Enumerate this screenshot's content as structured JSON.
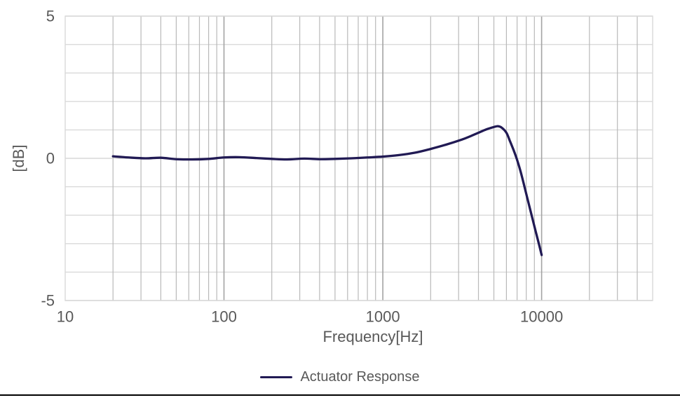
{
  "figure": {
    "background": "#ffffff",
    "bottom_rule_color": "#000000"
  },
  "chart_data": {
    "type": "line",
    "title": "",
    "xlabel": "Frequency[Hz]",
    "ylabel": "[dB]",
    "x_scale": "log",
    "xlim": [
      10,
      50000
    ],
    "ylim": [
      -5,
      5
    ],
    "x_tick_values": [
      10,
      100,
      1000,
      10000
    ],
    "x_tick_labels": [
      "10",
      "100",
      "1000",
      "10000"
    ],
    "y_tick_values": [
      5,
      0,
      -5
    ],
    "y_tick_labels": [
      "5",
      "0",
      "-5"
    ],
    "y_grid_step": 1,
    "grid": true,
    "legend_position": "bottom",
    "series": [
      {
        "name": "Actuator Response",
        "color": "#211a54",
        "points": [
          [
            20,
            0.07
          ],
          [
            25,
            0.03
          ],
          [
            32,
            0.0
          ],
          [
            40,
            0.02
          ],
          [
            50,
            -0.03
          ],
          [
            63,
            -0.04
          ],
          [
            80,
            -0.02
          ],
          [
            100,
            0.03
          ],
          [
            125,
            0.04
          ],
          [
            160,
            0.01
          ],
          [
            200,
            -0.02
          ],
          [
            250,
            -0.04
          ],
          [
            320,
            -0.01
          ],
          [
            400,
            -0.03
          ],
          [
            500,
            -0.02
          ],
          [
            630,
            0.0
          ],
          [
            800,
            0.03
          ],
          [
            1000,
            0.06
          ],
          [
            1250,
            0.11
          ],
          [
            1600,
            0.2
          ],
          [
            2000,
            0.33
          ],
          [
            2500,
            0.48
          ],
          [
            3150,
            0.66
          ],
          [
            3500,
            0.76
          ],
          [
            4000,
            0.9
          ],
          [
            4500,
            1.02
          ],
          [
            5000,
            1.1
          ],
          [
            5300,
            1.13
          ],
          [
            5600,
            1.08
          ],
          [
            6000,
            0.9
          ],
          [
            6300,
            0.62
          ],
          [
            6700,
            0.25
          ],
          [
            7000,
            -0.05
          ],
          [
            7400,
            -0.5
          ],
          [
            8000,
            -1.25
          ],
          [
            8600,
            -1.95
          ],
          [
            9200,
            -2.6
          ],
          [
            9600,
            -3.0
          ],
          [
            10000,
            -3.4
          ]
        ]
      }
    ],
    "colors": {
      "h_grid": "#d9d9d9",
      "v_grid_minor": "#b9b9b9",
      "v_grid_major": "#a3a3a3",
      "plot_border": "#d9d9d9",
      "tick_text": "#595959",
      "axis_title_text": "#595959",
      "legend_text": "#595959"
    }
  }
}
